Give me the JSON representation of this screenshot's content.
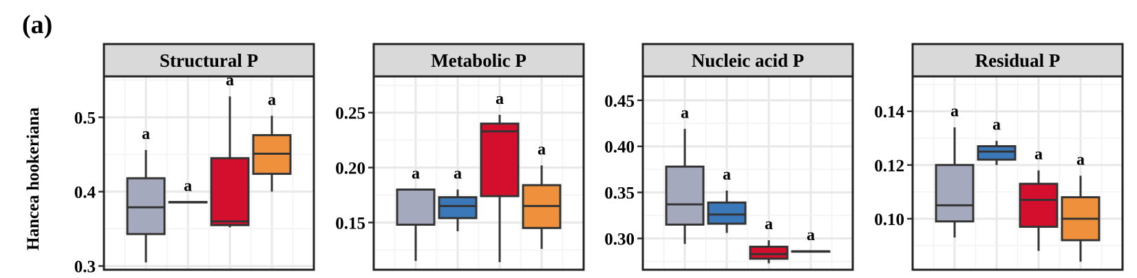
{
  "figure": {
    "panel_label": "(a)"
  },
  "chart_data": [
    {
      "type": "box",
      "title": "Structural P",
      "ylabel": "Hancea hookeriana",
      "ylim": [
        0.295,
        0.555
      ],
      "yticks": [
        0.3,
        0.4,
        0.5
      ],
      "ytick_labels": [
        "0.3",
        "0.4",
        "0.5"
      ],
      "grid": true,
      "series": [
        {
          "color": "#a5a9bd",
          "whisker_low": 0.305,
          "q1": 0.343,
          "median": 0.379,
          "q3": 0.418,
          "whisker_high": 0.456,
          "letter": "a"
        },
        {
          "color": "#3b78b9",
          "whisker_low": 0.386,
          "q1": 0.386,
          "median": 0.386,
          "q3": 0.386,
          "whisker_high": 0.386,
          "letter": "a"
        },
        {
          "color": "#d40f2e",
          "whisker_low": 0.352,
          "q1": 0.355,
          "median": 0.36,
          "q3": 0.445,
          "whisker_high": 0.528,
          "letter": "a"
        },
        {
          "color": "#ef913c",
          "whisker_low": 0.4,
          "q1": 0.424,
          "median": 0.451,
          "q3": 0.476,
          "whisker_high": 0.502,
          "letter": "a"
        }
      ]
    },
    {
      "type": "box",
      "title": "Metabolic P",
      "ylabel": "",
      "ylim": [
        0.107,
        0.283
      ],
      "yticks": [
        0.15,
        0.2,
        0.25
      ],
      "ytick_labels": [
        "0.15",
        "0.20",
        "0.25"
      ],
      "grid": true,
      "series": [
        {
          "color": "#a5a9bd",
          "whisker_low": 0.115,
          "q1": 0.148,
          "median": 0.18,
          "q3": 0.18,
          "whisker_high": 0.18,
          "letter": "a"
        },
        {
          "color": "#3b78b9",
          "whisker_low": 0.142,
          "q1": 0.154,
          "median": 0.165,
          "q3": 0.173,
          "whisker_high": 0.18,
          "letter": "a"
        },
        {
          "color": "#d40f2e",
          "whisker_low": 0.114,
          "q1": 0.174,
          "median": 0.233,
          "q3": 0.24,
          "whisker_high": 0.248,
          "letter": "a"
        },
        {
          "color": "#ef913c",
          "whisker_low": 0.126,
          "q1": 0.145,
          "median": 0.165,
          "q3": 0.184,
          "whisker_high": 0.202,
          "letter": "a"
        }
      ]
    },
    {
      "type": "box",
      "title": "Nucleic acid P",
      "ylabel": "",
      "ylim": [
        0.266,
        0.476
      ],
      "yticks": [
        0.3,
        0.35,
        0.4,
        0.45
      ],
      "ytick_labels": [
        "0.30",
        "0.35",
        "0.40",
        "0.45"
      ],
      "grid": true,
      "series": [
        {
          "color": "#a5a9bd",
          "whisker_low": 0.294,
          "q1": 0.315,
          "median": 0.337,
          "q3": 0.378,
          "whisker_high": 0.419,
          "letter": "a"
        },
        {
          "color": "#3b78b9",
          "whisker_low": 0.306,
          "q1": 0.316,
          "median": 0.326,
          "q3": 0.339,
          "whisker_high": 0.352,
          "letter": "a"
        },
        {
          "color": "#d40f2e",
          "whisker_low": 0.273,
          "q1": 0.278,
          "median": 0.283,
          "q3": 0.291,
          "whisker_high": 0.298,
          "letter": "a"
        },
        {
          "color": "#3b78b9",
          "whisker_low": 0.286,
          "q1": 0.286,
          "median": 0.286,
          "q3": 0.286,
          "whisker_high": 0.286,
          "letter": "a"
        }
      ]
    },
    {
      "type": "box",
      "title": "Residual P",
      "ylabel": "",
      "ylim": [
        0.081,
        0.153
      ],
      "yticks": [
        0.1,
        0.12,
        0.14
      ],
      "ytick_labels": [
        "0.10",
        "0.12",
        "0.14"
      ],
      "grid": true,
      "series": [
        {
          "color": "#a5a9bd",
          "whisker_low": 0.093,
          "q1": 0.099,
          "median": 0.105,
          "q3": 0.12,
          "whisker_high": 0.134,
          "letter": "a"
        },
        {
          "color": "#3b78b9",
          "whisker_low": 0.12,
          "q1": 0.122,
          "median": 0.125,
          "q3": 0.127,
          "whisker_high": 0.129,
          "letter": "a"
        },
        {
          "color": "#d40f2e",
          "whisker_low": 0.088,
          "q1": 0.097,
          "median": 0.107,
          "q3": 0.113,
          "whisker_high": 0.118,
          "letter": "a"
        },
        {
          "color": "#ef913c",
          "whisker_low": 0.084,
          "q1": 0.092,
          "median": 0.1,
          "q3": 0.108,
          "whisker_high": 0.116,
          "letter": "a"
        }
      ]
    }
  ]
}
